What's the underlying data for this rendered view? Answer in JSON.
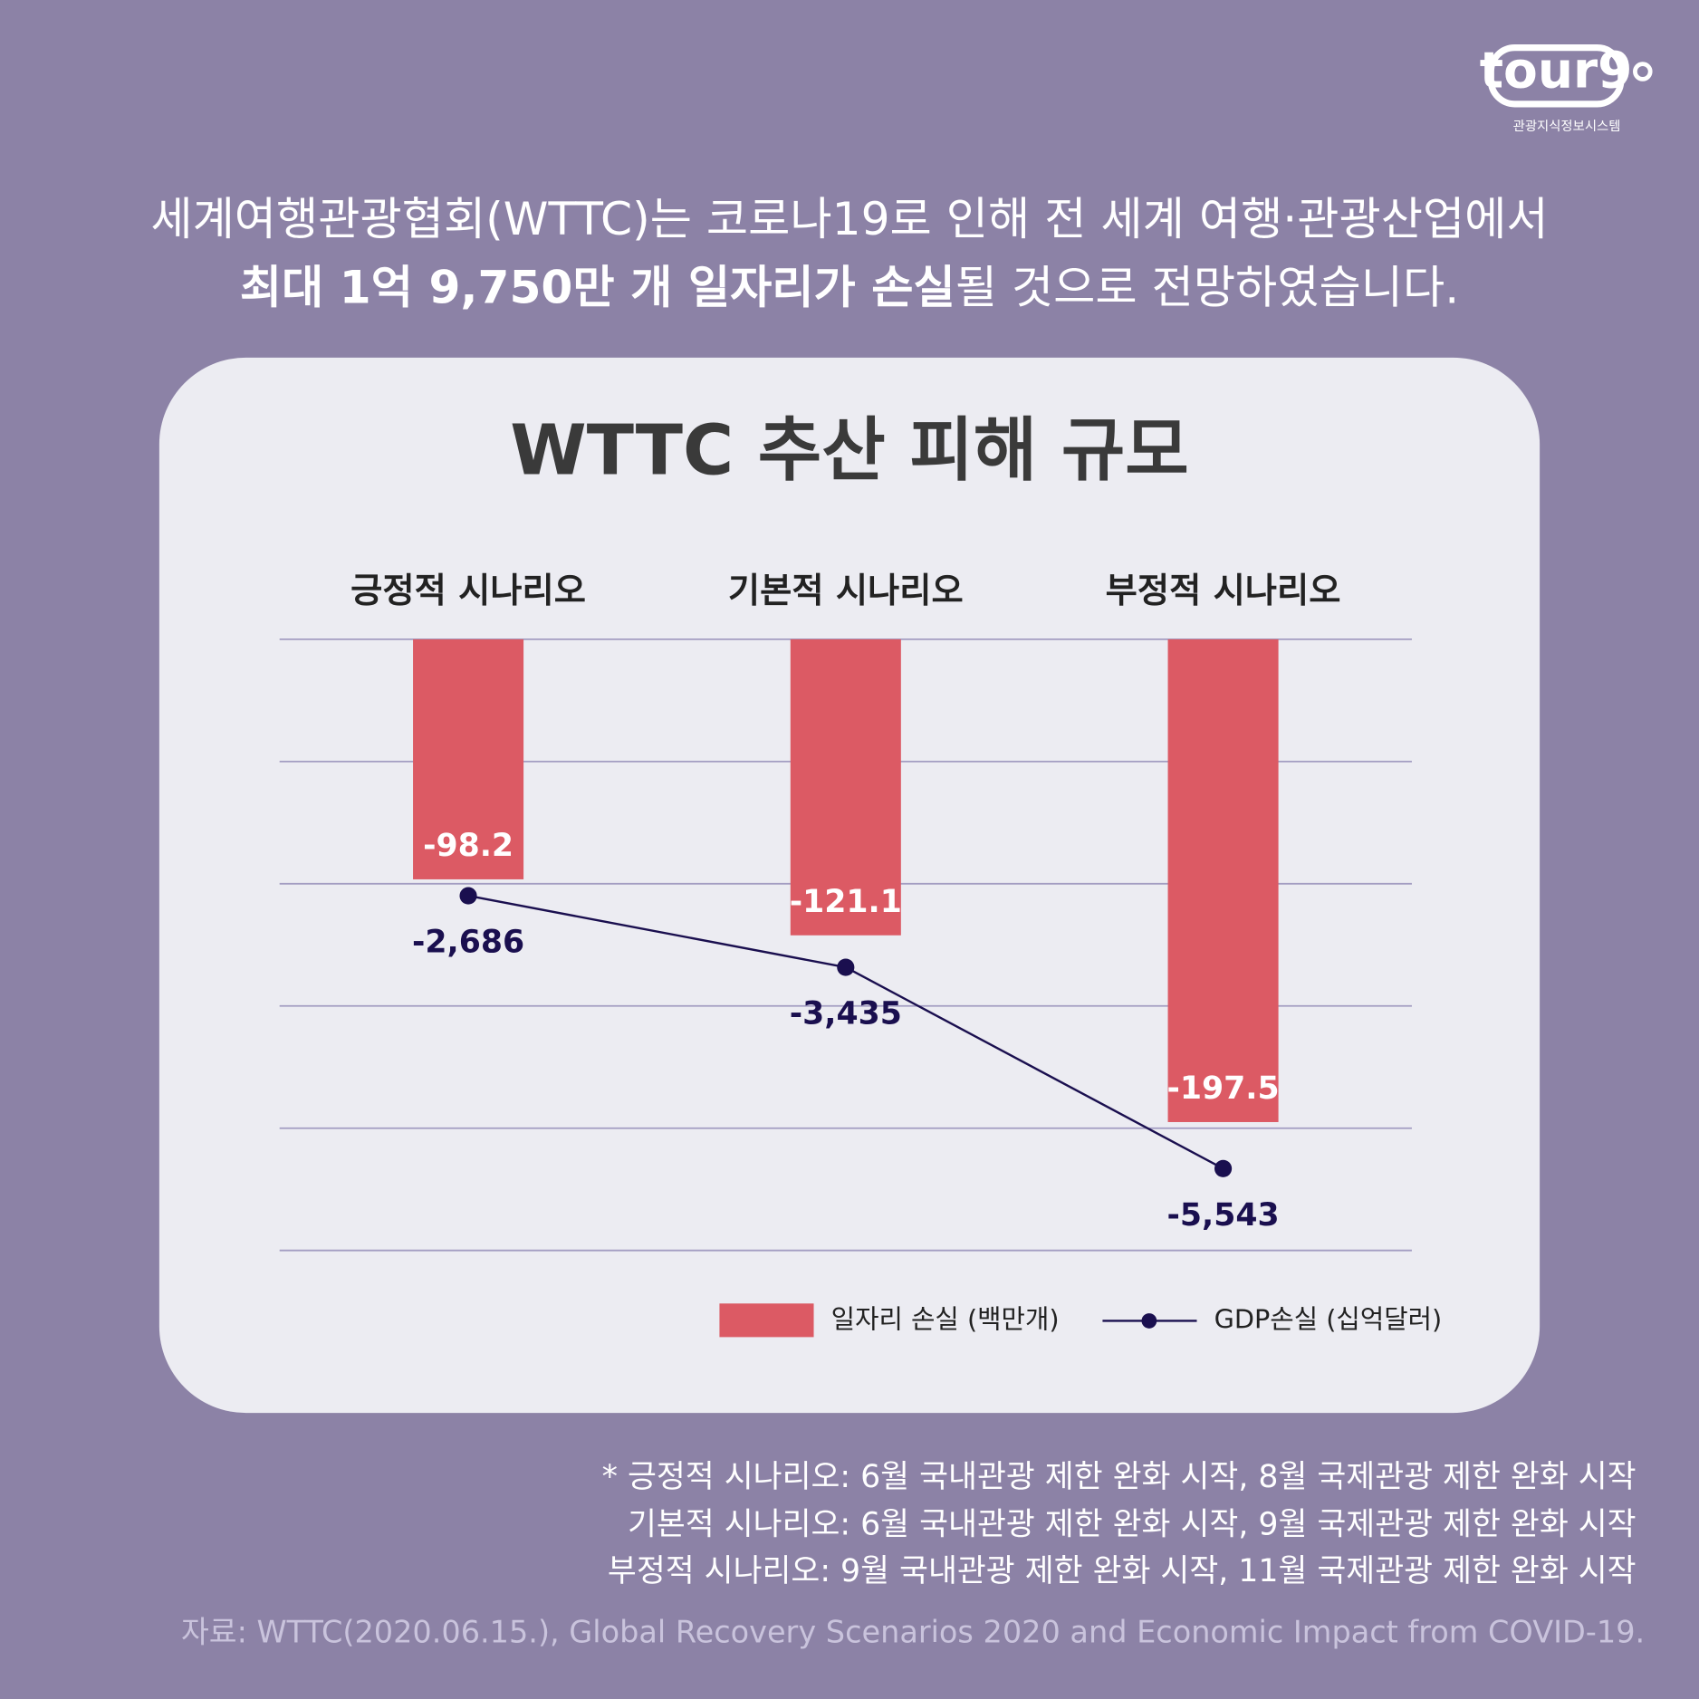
{
  "logo": {
    "brand": "tour9",
    "subtitle": "관광지식정보시스템"
  },
  "intro": {
    "line1": "세계여행관광협회(WTTC)는 코로나19로 인해 전 세계 여행·관광산업에서",
    "line2_bold": "최대 1억 9,750만 개 일자리가 손실",
    "line2_rest": "될 것으로 전망하였습니다."
  },
  "chart_data": {
    "type": "bar-line",
    "title": "WTTC 추산 피해 규모",
    "categories": [
      "긍정적 시나리오",
      "기본적 시나리오",
      "부정적 시나리오"
    ],
    "ylim": [
      -250,
      0
    ],
    "yticks": [
      -250,
      -200,
      -150,
      -100,
      -50,
      0
    ],
    "grid": true,
    "y2lim": [
      -6400,
      0
    ],
    "series": [
      {
        "name": "일자리 손실 (백만개)",
        "type": "bar",
        "color": "#dc5a64",
        "values": [
          -98.2,
          -121.1,
          -197.5
        ]
      },
      {
        "name": "GDP손실 (십억달러)",
        "type": "line",
        "axis": "y2",
        "color": "#1a0f4f",
        "values": [
          -2686,
          -3435,
          -5543
        ],
        "value_labels": [
          "-2,686",
          "-3,435",
          "-5,543"
        ]
      }
    ]
  },
  "notes": [
    "* 긍정적 시나리오: 6월 국내관광 제한 완화 시작, 8월 국제관광 제한 완화 시작",
    "기본적 시나리오: 6월 국내관광 제한 완화 시작, 9월 국제관광 제한 완화 시작",
    "부정적 시나리오: 9월 국내관광 제한 완화 시작, 11월 국제관광 제한 완화 시작"
  ],
  "source": "자료: WTTC(2020.06.15.), Global Recovery Scenarios 2020 and Economic Impact from COVID-19."
}
